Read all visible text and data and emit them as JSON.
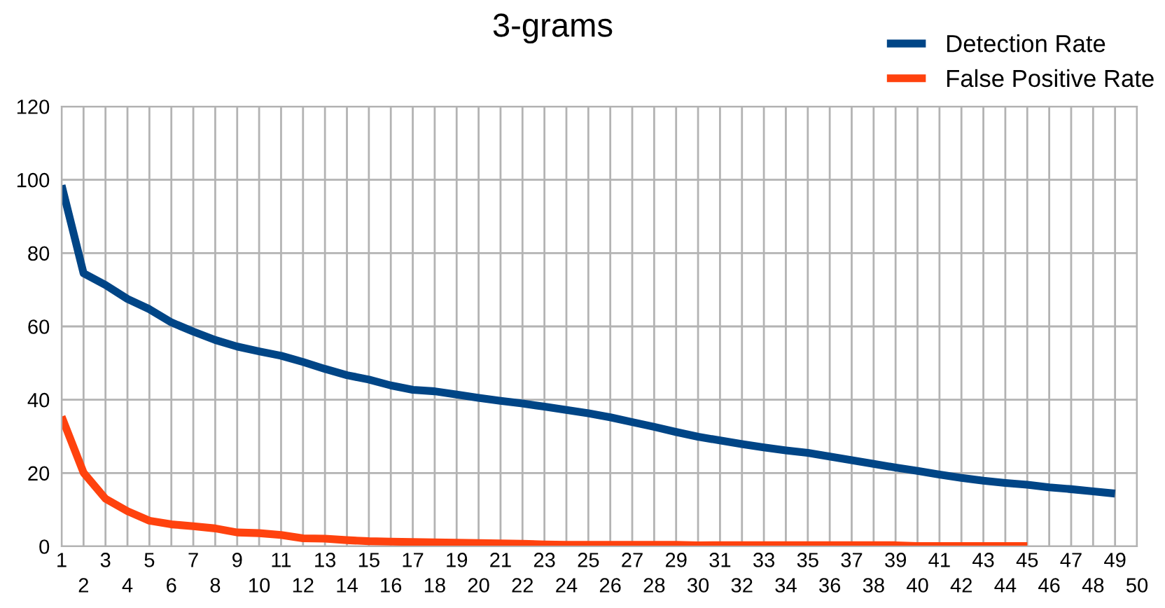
{
  "chart_data": {
    "type": "line",
    "title": "3-grams",
    "categories": [
      "1",
      "2",
      "3",
      "4",
      "5",
      "6",
      "7",
      "8",
      "9",
      "10",
      "11",
      "12",
      "13",
      "14",
      "15",
      "16",
      "17",
      "18",
      "19",
      "20",
      "21",
      "22",
      "23",
      "24",
      "25",
      "26",
      "27",
      "28",
      "29",
      "30",
      "31",
      "32",
      "33",
      "34",
      "35",
      "36",
      "37",
      "38",
      "39",
      "40",
      "41",
      "42",
      "43",
      "44",
      "45",
      "46",
      "47",
      "48",
      "49",
      "50"
    ],
    "series": [
      {
        "name": "Detection Rate",
        "color": "#004586",
        "values": [
          98.5,
          74.5,
          71.3,
          67.5,
          64.7,
          61.1,
          58.6,
          56.3,
          54.5,
          53.2,
          52.0,
          50.3,
          48.4,
          46.7,
          45.5,
          43.9,
          42.7,
          42.3,
          41.4,
          40.5,
          39.7,
          39.0,
          38.1,
          37.2,
          36.3,
          35.2,
          33.9,
          32.6,
          31.2,
          29.9,
          28.9,
          27.9,
          27.0,
          26.2,
          25.5,
          24.5,
          23.5,
          22.5,
          21.5,
          20.6,
          19.6,
          18.7,
          17.9,
          17.3,
          16.8,
          16.1,
          15.6,
          15.0,
          14.4,
          null
        ]
      },
      {
        "name": "False Positive Rate",
        "color": "#ff420e",
        "values": [
          35.4,
          20.1,
          13.0,
          9.6,
          7.0,
          6.0,
          5.5,
          4.9,
          3.8,
          3.6,
          3.1,
          2.2,
          2.1,
          1.7,
          1.4,
          1.3,
          1.2,
          1.1,
          1.0,
          0.9,
          0.8,
          0.7,
          0.5,
          0.4,
          0.4,
          0.4,
          0.4,
          0.4,
          0.4,
          0.3,
          0.3,
          0.3,
          0.3,
          0.3,
          0.3,
          0.3,
          0.3,
          0.3,
          0.3,
          0.1,
          0.1,
          0.1,
          0.1,
          0.1,
          0.1,
          null,
          null,
          null,
          null,
          null
        ]
      }
    ],
    "ylim": [
      0,
      120
    ],
    "yticks": [
      0,
      20,
      40,
      60,
      80,
      100,
      120
    ],
    "grid": true,
    "legend": "top right",
    "marker": "none",
    "line_style": "solid"
  }
}
